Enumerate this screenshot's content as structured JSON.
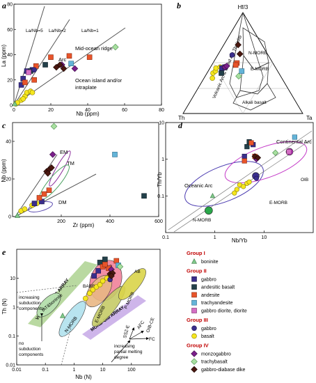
{
  "panel_a": {
    "letter": "a",
    "chart_data": {
      "type": "scatter",
      "xlabel": "Nb (ppm)",
      "ylabel": "La (ppm)",
      "xlim": [
        0,
        80
      ],
      "ylim": [
        0,
        80
      ],
      "xticks": [
        0,
        20,
        40,
        60,
        80
      ],
      "yticks": [
        0,
        20,
        40,
        60,
        80
      ],
      "line_labels": [
        "La/Nb=5",
        "La/Nb=2",
        "La/Nb=1"
      ],
      "field_labels": [
        "Arc",
        "Mid-ocean ridge",
        "Ocean island and/or",
        "intraplate"
      ],
      "points": [
        {
          "g": "basalt",
          "x": 1,
          "y": 1
        },
        {
          "g": "basalt",
          "x": 2,
          "y": 2
        },
        {
          "g": "basalt",
          "x": 4,
          "y": 4
        },
        {
          "g": "basalt",
          "x": 6,
          "y": 7
        },
        {
          "g": "basalt",
          "x": 7,
          "y": 10
        },
        {
          "g": "basalt",
          "x": 9,
          "y": 11
        },
        {
          "g": "basalt",
          "x": 10,
          "y": 10
        },
        {
          "g": "basalt",
          "x": 5,
          "y": 5
        },
        {
          "g": "boninite",
          "x": 0.5,
          "y": 1
        },
        {
          "g": "gabbro2",
          "x": 4,
          "y": 16
        },
        {
          "g": "gabbro2",
          "x": 5,
          "y": 21
        },
        {
          "g": "gabbro2",
          "x": 7,
          "y": 27
        },
        {
          "g": "gabbro2",
          "x": 10,
          "y": 28
        },
        {
          "g": "andesitic",
          "x": 9,
          "y": 27
        },
        {
          "g": "andesitic",
          "x": 17,
          "y": 32
        },
        {
          "g": "andesite",
          "x": 6,
          "y": 18
        },
        {
          "g": "andesite",
          "x": 11,
          "y": 20
        },
        {
          "g": "andesite",
          "x": 12,
          "y": 31
        },
        {
          "g": "andesite",
          "x": 20,
          "y": 38
        },
        {
          "g": "andesite",
          "x": 30,
          "y": 39
        },
        {
          "g": "andesite",
          "x": 41,
          "y": 38
        },
        {
          "g": "trachyandesite",
          "x": 31,
          "y": 33
        },
        {
          "g": "gabbrodiorite",
          "x": 8,
          "y": 26
        },
        {
          "g": "gabbro3",
          "x": 11,
          "y": 28
        },
        {
          "g": "monzogabbro",
          "x": 33,
          "y": 29
        },
        {
          "g": "monzogabbro",
          "x": 26,
          "y": 32
        },
        {
          "g": "trachybasalt",
          "x": 55,
          "y": 46
        },
        {
          "g": "dike",
          "x": 23,
          "y": 30
        },
        {
          "g": "dike",
          "x": 25,
          "y": 32
        },
        {
          "g": "dike",
          "x": 27,
          "y": 29
        }
      ]
    }
  },
  "panel_b": {
    "letter": "b",
    "chart_data": {
      "type": "scatter",
      "vertex_labels": [
        "Hf/3",
        "Th",
        "Ta"
      ],
      "field_labels": [
        "N-MORB",
        "E-MORB",
        "Alkali basalt",
        "Volcanic Arc & Island Arc Tholeiite"
      ],
      "points": [
        {
          "g": "basalt",
          "th": 0.55,
          "ta": 0.05
        },
        {
          "g": "basalt",
          "th": 0.52,
          "ta": 0.06
        },
        {
          "g": "basalt",
          "th": 0.5,
          "ta": 0.05
        },
        {
          "g": "basalt",
          "th": 0.58,
          "ta": 0.07
        },
        {
          "g": "basalt",
          "th": 0.46,
          "ta": 0.08
        },
        {
          "g": "gabbro2",
          "th": 0.45,
          "ta": 0.1
        },
        {
          "g": "gabbro2",
          "th": 0.42,
          "ta": 0.12
        },
        {
          "g": "andesitic",
          "th": 0.48,
          "ta": 0.12
        },
        {
          "g": "andesite",
          "th": 0.3,
          "ta": 0.2
        },
        {
          "g": "andesite",
          "th": 0.32,
          "ta": 0.2
        },
        {
          "g": "trachyandesite",
          "th": 0.3,
          "ta": 0.28
        },
        {
          "g": "gabbro3",
          "th": 0.3,
          "ta": 0.12
        },
        {
          "g": "monzogabbro",
          "th": 0.42,
          "ta": 0.12
        },
        {
          "g": "monzogabbro",
          "th": 0.4,
          "ta": 0.13
        },
        {
          "g": "trachybasalt",
          "th": 0.35,
          "ta": 0.28
        },
        {
          "g": "dike",
          "th": 0.23,
          "ta": 0.18
        },
        {
          "g": "dike",
          "th": 0.2,
          "ta": 0.12
        }
      ]
    }
  },
  "panel_c": {
    "letter": "c",
    "chart_data": {
      "type": "scatter",
      "xlabel": "Zr (ppm)",
      "ylabel": "Nb (ppm)",
      "xlim": [
        0,
        600
      ],
      "ylim": [
        0,
        50
      ],
      "xticks": [
        200,
        400,
        600
      ],
      "yticks": [
        0,
        20,
        40
      ],
      "field_labels": [
        "EM",
        "TM",
        "DM"
      ],
      "points": [
        {
          "g": "basalt",
          "x": 35,
          "y": 3
        },
        {
          "g": "basalt",
          "x": 50,
          "y": 4
        },
        {
          "g": "basalt",
          "x": 80,
          "y": 6
        },
        {
          "g": "basalt",
          "x": 100,
          "y": 7
        },
        {
          "g": "basalt",
          "x": 120,
          "y": 8
        },
        {
          "g": "boninite",
          "x": 20,
          "y": 0.5
        },
        {
          "g": "gabbro2",
          "x": 90,
          "y": 7
        },
        {
          "g": "gabbro2",
          "x": 120,
          "y": 8
        },
        {
          "g": "andesite",
          "x": 110,
          "y": 10
        },
        {
          "g": "andesite",
          "x": 150,
          "y": 14
        },
        {
          "g": "andesite",
          "x": 130,
          "y": 12
        },
        {
          "g": "andesitic",
          "x": 540,
          "y": 11
        },
        {
          "g": "trachyandesite",
          "x": 420,
          "y": 33
        },
        {
          "g": "monzogabbro",
          "x": 165,
          "y": 33
        },
        {
          "g": "trachybasalt",
          "x": 170,
          "y": 48
        },
        {
          "g": "dike",
          "x": 140,
          "y": 24
        },
        {
          "g": "dike",
          "x": 150,
          "y": 25
        },
        {
          "g": "dike",
          "x": 160,
          "y": 26
        },
        {
          "g": "dike",
          "x": 145,
          "y": 23
        }
      ]
    }
  },
  "panel_d": {
    "letter": "d",
    "chart_data": {
      "type": "scatter",
      "xlabel": "Nb/Yb",
      "ylabel": "Th/Yb",
      "xscale": "log",
      "yscale": "log",
      "xlim": [
        0.1,
        100
      ],
      "ylim": [
        0.01,
        10
      ],
      "xticks": [
        0.1,
        1,
        10
      ],
      "yticks": [
        0.1,
        1,
        10
      ],
      "field_labels": [
        "Continental Arc",
        "Oceanic Arc",
        "OIB",
        "E-MORB",
        "N-MORB"
      ],
      "points": [
        {
          "g": "basalt",
          "x": 2.5,
          "y": 0.12
        },
        {
          "g": "basalt",
          "x": 2.8,
          "y": 0.15
        },
        {
          "g": "basalt",
          "x": 3.2,
          "y": 0.2
        },
        {
          "g": "basalt",
          "x": 3.8,
          "y": 0.18
        },
        {
          "g": "basalt",
          "x": 4.5,
          "y": 0.22
        },
        {
          "g": "basalt",
          "x": 5,
          "y": 0.24
        },
        {
          "g": "boninite",
          "x": 0.9,
          "y": 0.1
        },
        {
          "g": "gabbro2",
          "x": 4,
          "y": 1.2
        },
        {
          "g": "gabbro2",
          "x": 6,
          "y": 2.5
        },
        {
          "g": "andesitic",
          "x": 4.5,
          "y": 2.2
        },
        {
          "g": "andesitic",
          "x": 5,
          "y": 3
        },
        {
          "g": "andesite",
          "x": 4,
          "y": 0.9
        },
        {
          "g": "andesite",
          "x": 5.5,
          "y": 2.8
        },
        {
          "g": "andesite",
          "x": 6.5,
          "y": 1.2
        },
        {
          "g": "trachyandesite",
          "x": 42,
          "y": 4
        },
        {
          "g": "gabbrodiorite",
          "x": 32,
          "y": 1.6
        },
        {
          "g": "gabbro3",
          "x": 7,
          "y": 0.3
        },
        {
          "g": "monzogabbro",
          "x": 7,
          "y": 1.0
        },
        {
          "g": "trachybasalt",
          "x": 17,
          "y": 1.5
        },
        {
          "g": "dike",
          "x": 6.5,
          "y": 1.2
        },
        {
          "g": "dike",
          "x": 7.5,
          "y": 1.1
        }
      ],
      "reference_points": [
        {
          "name": "OIB",
          "x": 33,
          "y": 1.6
        },
        {
          "name": "E-MORB",
          "x": 6.8,
          "y": 0.35
        },
        {
          "name": "N-MORB",
          "x": 0.75,
          "y": 0.04
        }
      ]
    }
  },
  "panel_e": {
    "letter": "e",
    "chart_data": {
      "type": "scatter",
      "xlabel": "Nb (N)",
      "ylabel": "Th (N)",
      "xscale": "log",
      "yscale": "log",
      "xlim": [
        0.01,
        1000
      ],
      "ylim": [
        0.01,
        100
      ],
      "xticks": [
        0.01,
        0.1,
        1,
        10,
        100
      ],
      "yticks": [
        0.01,
        0.1,
        1,
        10
      ],
      "field_labels": [
        "CAB",
        "BABB",
        "AB",
        "E-MORB",
        "P-MORB",
        "N-MORB",
        "IAT&boninite",
        "VOLCANIC ARC ARRAY",
        "MORB-OIB ARRAY"
      ],
      "annotations": [
        "increasing subduction components",
        "no subduction components",
        "SSZ-E",
        "AFC",
        "OIB-CE",
        "FC",
        "increasing partial melting degree"
      ],
      "points": [
        {
          "g": "basalt",
          "x": 2.5,
          "y": 2
        },
        {
          "g": "basalt",
          "x": 3.5,
          "y": 3
        },
        {
          "g": "basalt",
          "x": 4.5,
          "y": 4
        },
        {
          "g": "basalt",
          "x": 6,
          "y": 5
        },
        {
          "g": "basalt",
          "x": 8,
          "y": 6
        },
        {
          "g": "basalt",
          "x": 10,
          "y": 8
        },
        {
          "g": "basalt",
          "x": 14,
          "y": 10
        },
        {
          "g": "basalt",
          "x": 18,
          "y": 13
        },
        {
          "g": "boninite",
          "x": 0.4,
          "y": 0.5
        },
        {
          "g": "gabbro2",
          "x": 5,
          "y": 12
        },
        {
          "g": "gabbro2",
          "x": 7,
          "y": 18
        },
        {
          "g": "andesitic",
          "x": 8,
          "y": 35
        },
        {
          "g": "andesitic",
          "x": 12,
          "y": 45
        },
        {
          "g": "andesite",
          "x": 10,
          "y": 25
        },
        {
          "g": "andesite",
          "x": 16,
          "y": 22
        },
        {
          "g": "andesite",
          "x": 30,
          "y": 40
        },
        {
          "g": "andesite",
          "x": 12,
          "y": 30
        },
        {
          "g": "trachyandesite",
          "x": 35,
          "y": 28
        },
        {
          "g": "gabbro3",
          "x": 18,
          "y": 9
        },
        {
          "g": "monzogabbro",
          "x": 20,
          "y": 20
        },
        {
          "g": "trachybasalt",
          "x": 40,
          "y": 25
        },
        {
          "g": "dike",
          "x": 18,
          "y": 14
        },
        {
          "g": "dike",
          "x": 22,
          "y": 15
        },
        {
          "g": "dike",
          "x": 20,
          "y": 12
        }
      ]
    }
  },
  "legend": {
    "groups": [
      {
        "title": "Group I",
        "items": [
          {
            "label": "boninite",
            "g": "boninite"
          }
        ]
      },
      {
        "title": "Group II",
        "items": [
          {
            "label": "gabbro",
            "g": "gabbro2"
          },
          {
            "label": "andesitic basalt",
            "g": "andesitic"
          },
          {
            "label": "andesite",
            "g": "andesite"
          },
          {
            "label": "trachyandesite",
            "g": "trachyandesite"
          },
          {
            "label": "gabbro diorite, diorite",
            "g": "gabbrodiorite"
          }
        ]
      },
      {
        "title": "Group III",
        "items": [
          {
            "label": "gabbro",
            "g": "gabbro3"
          },
          {
            "label": "basalt",
            "g": "basalt"
          }
        ]
      },
      {
        "title": "Group IV",
        "items": [
          {
            "label": "monzogabbro",
            "g": "monzogabbro"
          },
          {
            "label": "trachybasalt",
            "g": "trachybasalt"
          },
          {
            "label": "gabbro-diabase dike",
            "g": "dike"
          }
        ]
      }
    ]
  },
  "symbols": {
    "basalt": {
      "shape": "circle",
      "fill": "#f5e61e",
      "stroke": "#8a7d00"
    },
    "boninite": {
      "shape": "triangle",
      "fill": "#7fc88a",
      "stroke": "#3d7a45"
    },
    "gabbro2": {
      "shape": "square",
      "fill": "#3a2e8c",
      "stroke": "#1e1650"
    },
    "andesitic": {
      "shape": "square",
      "fill": "#23404a",
      "stroke": "#0f1f25"
    },
    "andesite": {
      "shape": "square",
      "fill": "#e8542a",
      "stroke": "#8a2a10"
    },
    "trachyandesite": {
      "shape": "square",
      "fill": "#64b4d8",
      "stroke": "#2a6a8a"
    },
    "gabbrodiorite": {
      "shape": "square",
      "fill": "#d46fc4",
      "stroke": "#7a2a6a"
    },
    "gabbro3": {
      "shape": "circle",
      "fill": "#3a2e8c",
      "stroke": "#1e1650"
    },
    "monzogabbro": {
      "shape": "diamond",
      "fill": "#7a1f8a",
      "stroke": "#3a0a45"
    },
    "trachybasalt": {
      "shape": "diamond",
      "fill": "#a8e0a0",
      "stroke": "#4a8a4a"
    },
    "dike": {
      "shape": "diamond",
      "fill": "#4a1810",
      "stroke": "#1a0500"
    }
  }
}
